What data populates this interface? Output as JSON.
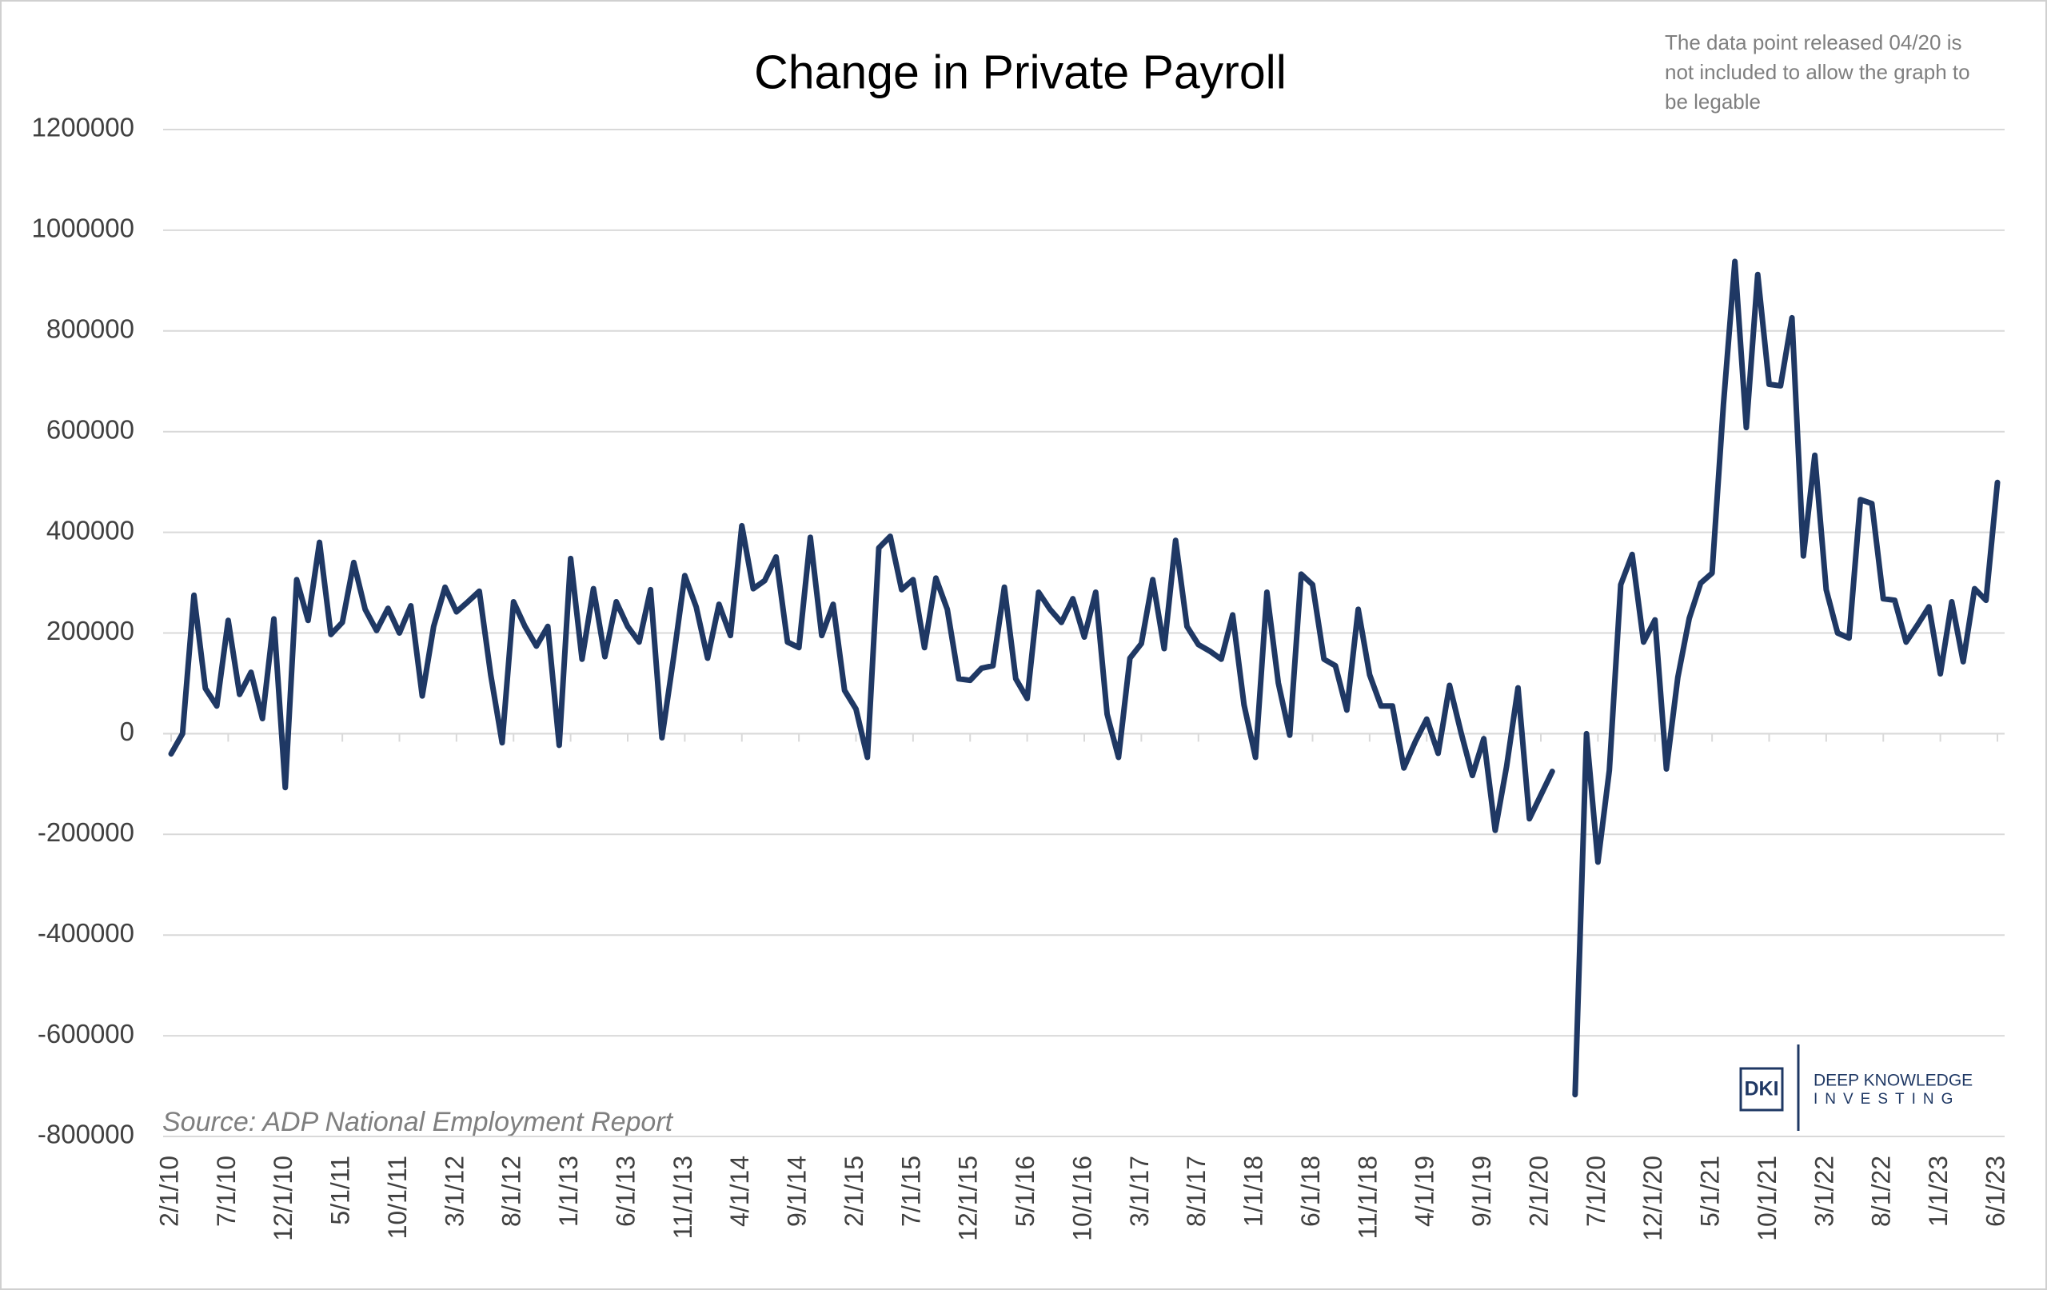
{
  "chart_data": {
    "type": "line",
    "title": "Change in Private Payroll",
    "annotation": [
      "The data point released 04/20 is",
      "not included to allow the graph to",
      "be legable"
    ],
    "source": "Source: ADP National Employment Report",
    "categories": [
      "2/1/10",
      null,
      null,
      null,
      null,
      "7/1/10",
      null,
      null,
      null,
      null,
      "12/1/10",
      null,
      null,
      null,
      null,
      "5/1/11",
      null,
      null,
      null,
      null,
      "10/1/11",
      null,
      null,
      null,
      null,
      "3/1/12",
      null,
      null,
      null,
      null,
      "8/1/12",
      null,
      null,
      null,
      null,
      "1/1/13",
      null,
      null,
      null,
      null,
      "6/1/13",
      null,
      null,
      null,
      null,
      "11/1/13",
      null,
      null,
      null,
      null,
      "4/1/14",
      null,
      null,
      null,
      null,
      "9/1/14",
      null,
      null,
      null,
      null,
      "2/1/15",
      null,
      null,
      null,
      null,
      "7/1/15",
      null,
      null,
      null,
      null,
      "12/1/15",
      null,
      null,
      null,
      null,
      "5/1/16",
      null,
      null,
      null,
      null,
      "10/1/16",
      null,
      null,
      null,
      null,
      "3/1/17",
      null,
      null,
      null,
      null,
      "8/1/17",
      null,
      null,
      null,
      null,
      "1/1/18",
      null,
      null,
      null,
      null,
      "6/1/18",
      null,
      null,
      null,
      null,
      "11/1/18",
      null,
      null,
      null,
      null,
      "4/1/19",
      null,
      null,
      null,
      null,
      "9/1/19",
      null,
      null,
      null,
      null,
      "2/1/20",
      null,
      null,
      null,
      null,
      "7/1/20",
      null,
      null,
      null,
      null,
      "12/1/20",
      null,
      null,
      null,
      null,
      "5/1/21",
      null,
      null,
      null,
      null,
      "10/1/21",
      null,
      null,
      null,
      null,
      "3/1/22",
      null,
      null,
      null,
      null,
      "8/1/22",
      null,
      null,
      null,
      null,
      "1/1/23",
      null,
      null,
      null,
      null,
      "6/1/23"
    ],
    "series": [
      {
        "name": "Change in Private Payroll",
        "color": "#1f3864",
        "values": [
          -40000,
          0,
          275000,
          90000,
          55000,
          225000,
          78000,
          122000,
          30000,
          228000,
          -107000,
          306000,
          225000,
          380000,
          197000,
          221000,
          340000,
          247000,
          205000,
          249000,
          200000,
          254000,
          75000,
          213000,
          291000,
          242000,
          262000,
          283000,
          117000,
          -18000,
          262000,
          213000,
          174000,
          213000,
          -23000,
          348000,
          148000,
          288000,
          153000,
          262000,
          213000,
          182000,
          286000,
          -8000,
          148000,
          314000,
          252000,
          150000,
          257000,
          195000,
          413000,
          288000,
          304000,
          351000,
          182000,
          171000,
          390000,
          195000,
          257000,
          86000,
          49000,
          -47000,
          369000,
          392000,
          286000,
          306000,
          171000,
          309000,
          247000,
          109000,
          106000,
          130000,
          135000,
          291000,
          109000,
          70000,
          281000,
          247000,
          221000,
          268000,
          192000,
          281000,
          39000,
          -47000,
          150000,
          179000,
          306000,
          169000,
          384000,
          213000,
          177000,
          164000,
          148000,
          236000,
          57000,
          -47000,
          281000,
          101000,
          -3000,
          317000,
          296000,
          148000,
          135000,
          47000,
          247000,
          117000,
          55000,
          55000,
          -68000,
          -16000,
          29000,
          -39000,
          96000,
          3000,
          -83000,
          -10000,
          -192000,
          -65000,
          91000,
          -169000,
          -122000,
          -75000,
          null,
          -717000,
          0,
          -255000,
          -73000,
          296000,
          356000,
          182000,
          226000,
          -70000,
          112000,
          229000,
          299000,
          319000,
          655000,
          938000,
          608000,
          912000,
          694000,
          691000,
          826000,
          353000,
          553000,
          286000,
          200000,
          190000,
          465000,
          457000,
          268000,
          265000,
          182000,
          216000,
          252000,
          119000,
          262000,
          143000,
          288000,
          265000,
          499000
        ]
      }
    ],
    "ylim": [
      -800000,
      1200000
    ],
    "yticks": [
      -800000,
      -600000,
      -400000,
      -200000,
      0,
      200000,
      400000,
      600000,
      800000,
      1000000,
      1200000
    ],
    "grid": true
  },
  "logo": {
    "mark": "DKI",
    "name": "DEEP KNOWLEDGE",
    "tagline": "INVESTING"
  }
}
